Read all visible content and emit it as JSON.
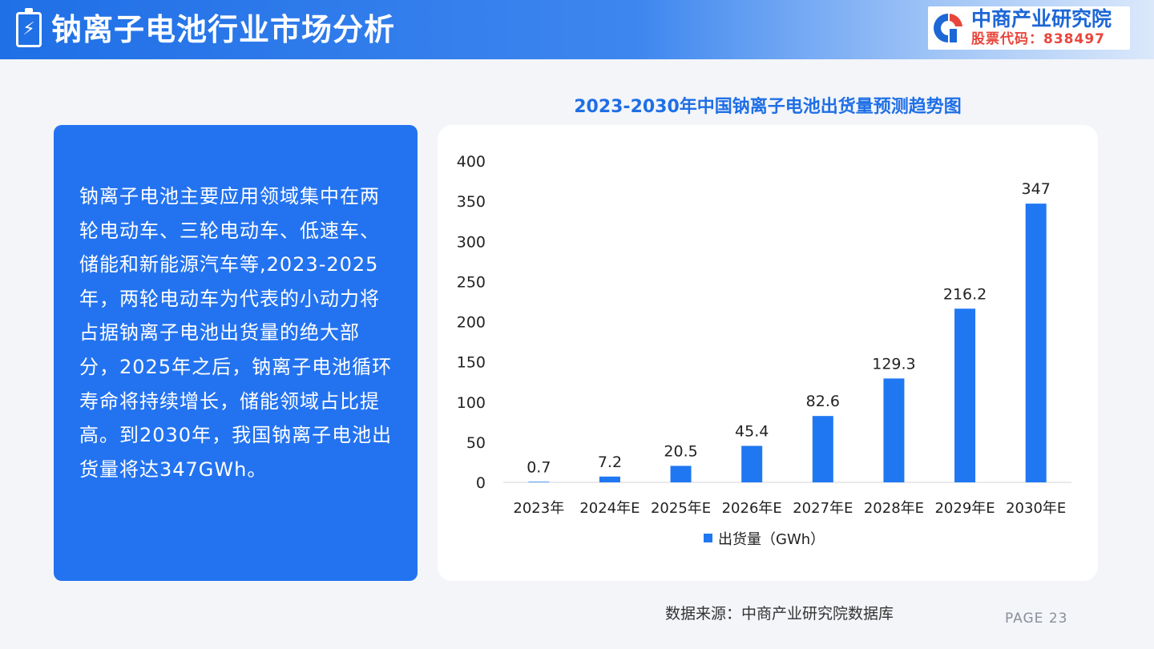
{
  "header": {
    "title": "钠离子电池行业市场分析"
  },
  "logo": {
    "name": "中商产业研究院",
    "stock_code": "股票代码：838497",
    "brand_color": "#1d67d6",
    "accent_color": "#e8463c"
  },
  "summary": {
    "text": "钠离子电池主要应用领域集中在两轮电动车、三轮电动车、低速车、储能和新能源汽车等,2023-2025年，两轮电动车为代表的小动力将占据钠离子电池出货量的绝大部分，2025年之后，钠离子电池循环寿命将持续增长，储能领域占比提高。到2030年，我国钠离子电池出货量将达347GWh。"
  },
  "chart_data": {
    "type": "bar",
    "title": "2023-2030年中国钠离子电池出货量预测趋势图",
    "categories": [
      "2023年",
      "2024年E",
      "2025年E",
      "2026年E",
      "2027年E",
      "2028年E",
      "2029年E",
      "2030年E"
    ],
    "series": [
      {
        "name": "出货量（GWh）",
        "values": [
          0.7,
          7.2,
          20.5,
          45.4,
          82.6,
          129.3,
          216.2,
          347
        ],
        "labels": [
          "0.7",
          "7.2",
          "20.5",
          "45.4",
          "82.6",
          "129.3",
          "216.2",
          "347"
        ],
        "color": "#1f77f2"
      }
    ],
    "yticks": [
      "0",
      "50",
      "100",
      "150",
      "200",
      "250",
      "300",
      "350",
      "400"
    ],
    "ylim": [
      0,
      400
    ],
    "grid": false,
    "legend": "bottom"
  },
  "footer": {
    "source": "数据来源：中商产业研究院数据库",
    "page": "PAGE 23"
  }
}
